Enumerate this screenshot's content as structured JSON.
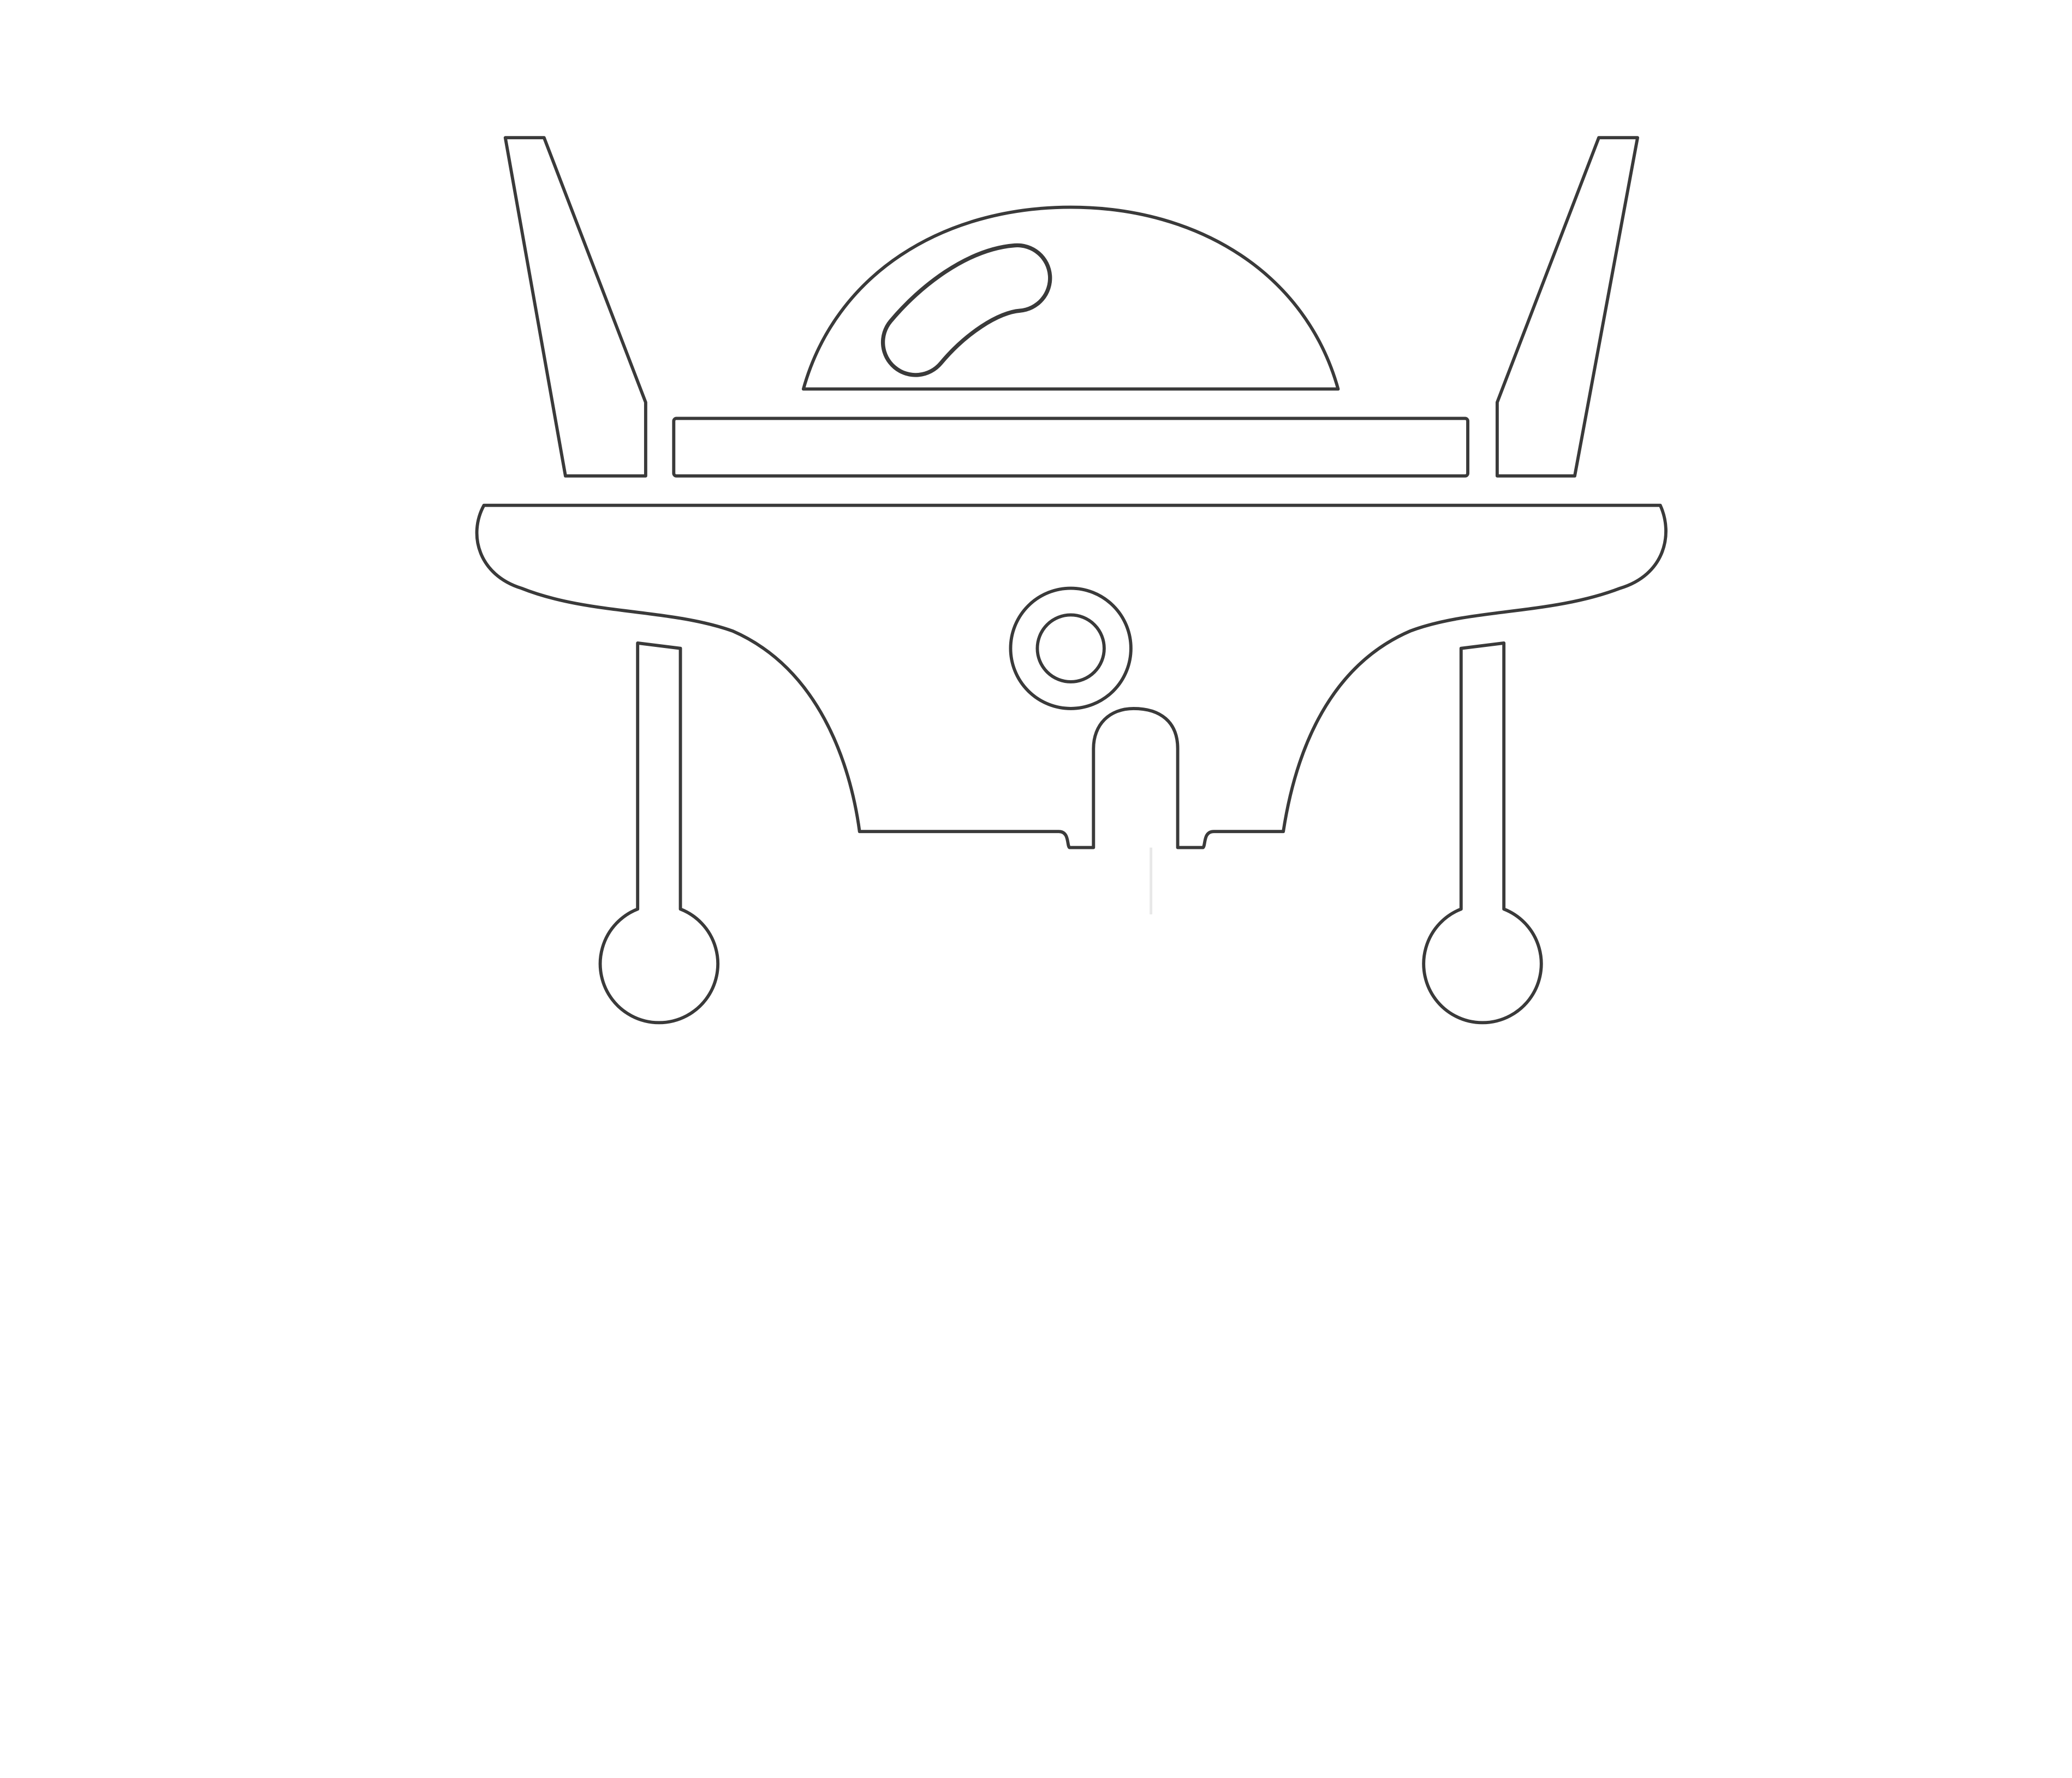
{
  "canvas": {
    "background": "#ffffff"
  },
  "figure": {
    "icon": "robot-table-line-art-icon",
    "stroke_color": "#3a3a3a",
    "fill_color": "#ffffff"
  }
}
